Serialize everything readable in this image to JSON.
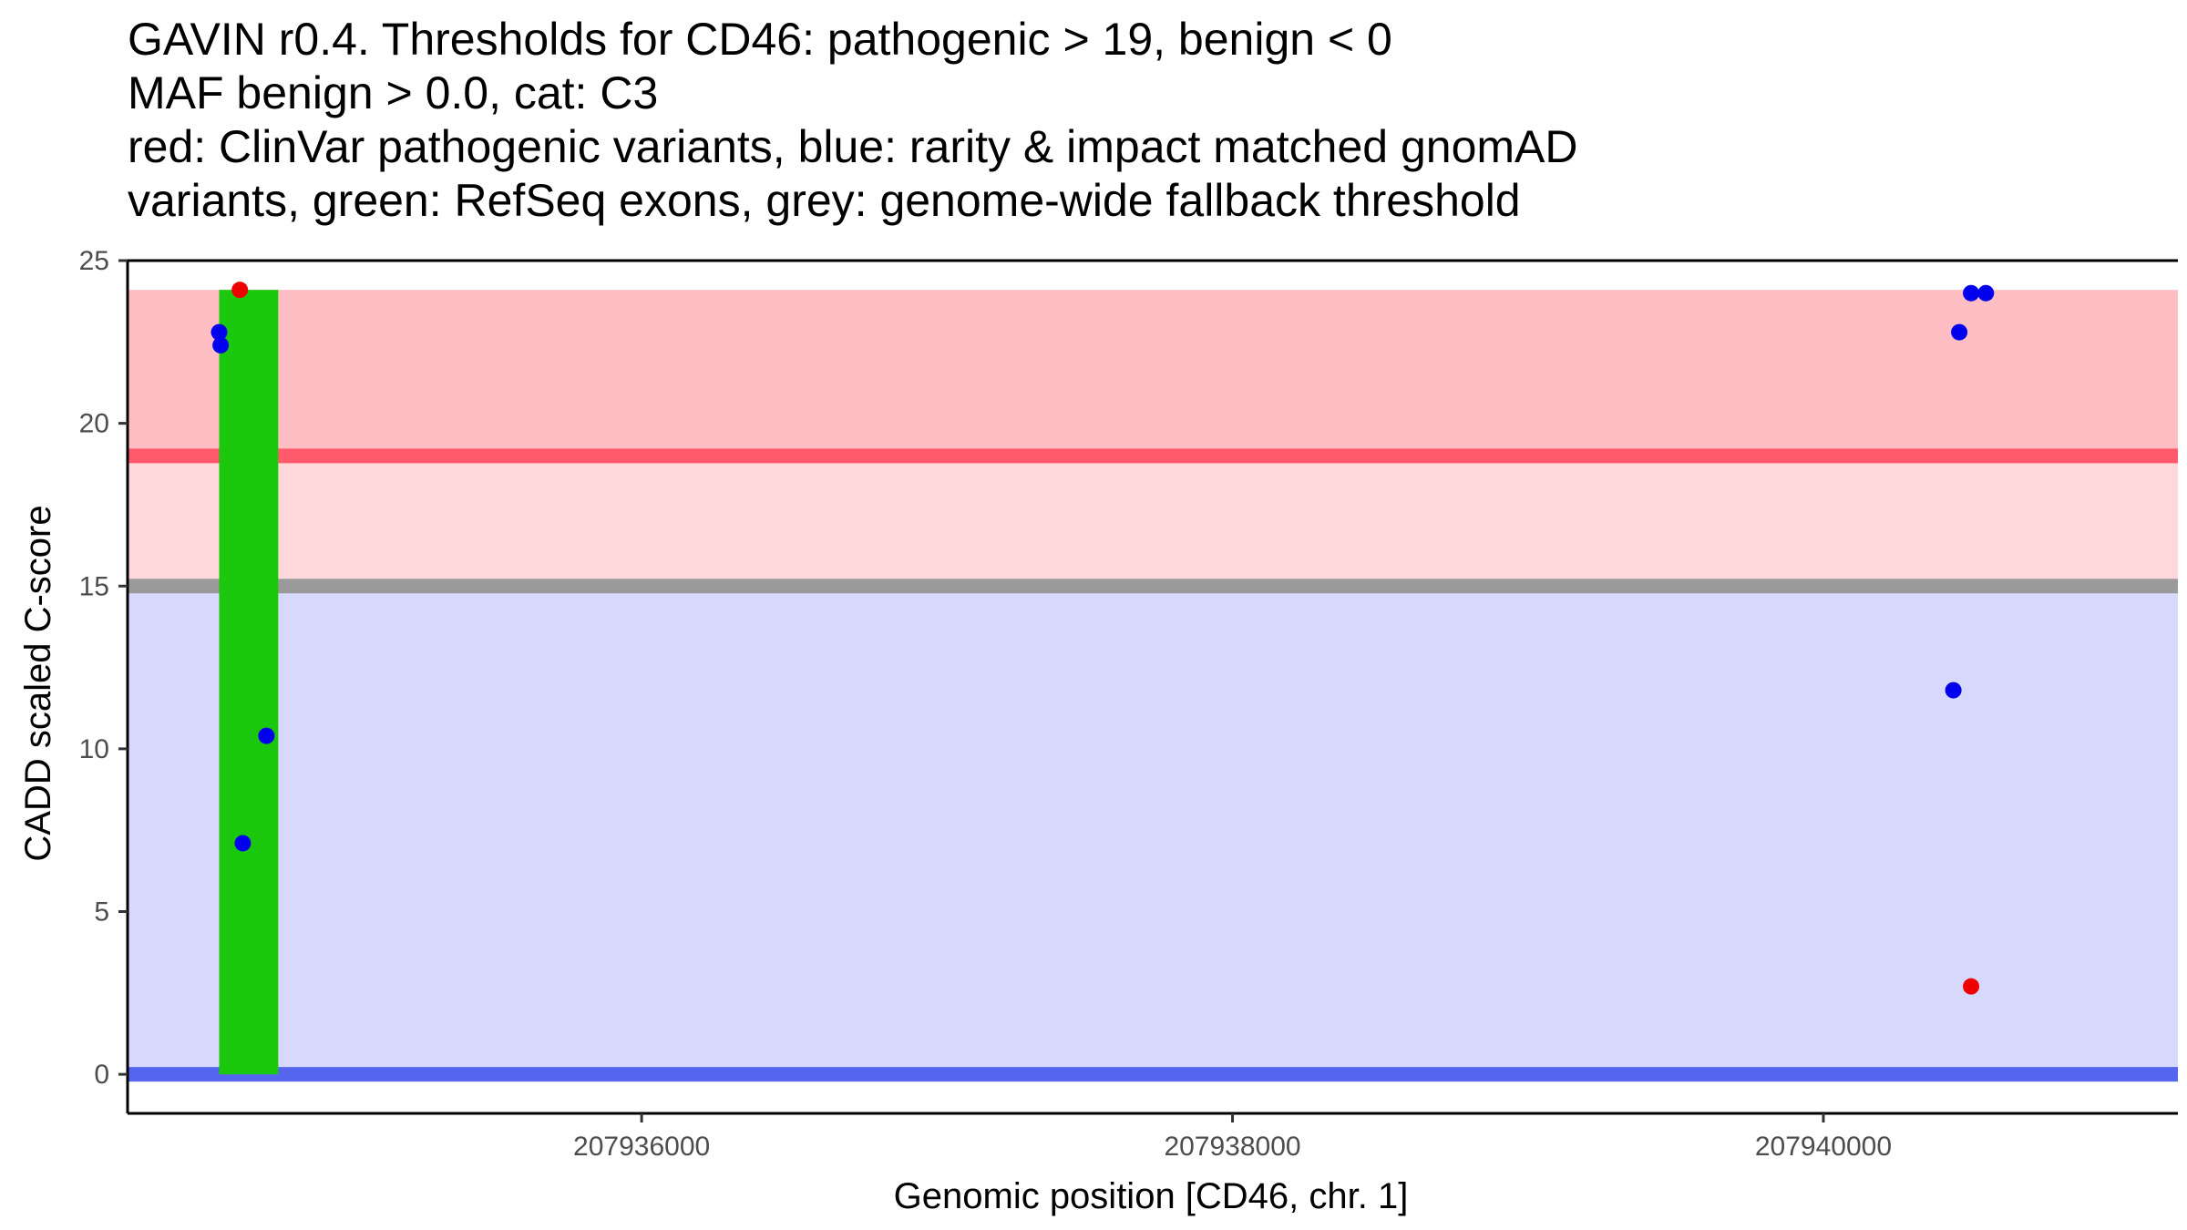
{
  "chart_data": {
    "type": "scatter",
    "title_lines": [
      "GAVIN r0.4. Thresholds for CD46: pathogenic > 19, benign < 0",
      "MAF benign > 0.0, cat: C3",
      "red: ClinVar pathogenic variants, blue: rarity & impact matched gnomAD",
      "variants, green: RefSeq exons, grey: genome-wide fallback threshold"
    ],
    "xlabel": "Genomic position [CD46, chr. 1]",
    "ylabel": "CADD scaled C-score",
    "xlim": [
      207934260,
      207941200
    ],
    "ylim": [
      -1.2,
      25.0
    ],
    "x_ticks": [
      207936000,
      207938000,
      207940000
    ],
    "x_tick_labels": [
      "207936000",
      "207938000",
      "207940000"
    ],
    "y_ticks": [
      0,
      5,
      10,
      15,
      20,
      25
    ],
    "y_tick_labels": [
      "0",
      "5",
      "10",
      "15",
      "20",
      "25"
    ],
    "bands": [
      {
        "name": "pathogenic-zone",
        "y0": 19,
        "y1": 24.1,
        "color": "#ffbec4"
      },
      {
        "name": "intermediate-zone",
        "y0": 15,
        "y1": 19,
        "color": "#ffd8dc"
      },
      {
        "name": "benign-zone",
        "y0": 0,
        "y1": 15,
        "color": "#d7d9fc"
      }
    ],
    "threshold_lines": [
      {
        "name": "pathogenic-threshold",
        "y": 19,
        "color": "#ff5a6c"
      },
      {
        "name": "fallback-threshold",
        "y": 15,
        "color": "#9a9a9a"
      },
      {
        "name": "benign-threshold",
        "y": 0,
        "color": "#5566ee"
      }
    ],
    "exons": [
      {
        "name": "refseq-exon",
        "x0": 207934570,
        "x1": 207934770,
        "y0": 0,
        "y1": 24.1,
        "color": "#1cc80e"
      }
    ],
    "series": [
      {
        "name": "ClinVar pathogenic variants",
        "color": "#ee0000",
        "points": [
          {
            "x": 207934640,
            "y": 24.1
          },
          {
            "x": 207940500,
            "y": 2.7
          }
        ]
      },
      {
        "name": "rarity & impact matched gnomAD variants",
        "color": "#0000ee",
        "points": [
          {
            "x": 207934570,
            "y": 22.8
          },
          {
            "x": 207934575,
            "y": 22.4
          },
          {
            "x": 207934650,
            "y": 7.1
          },
          {
            "x": 207934730,
            "y": 10.4
          },
          {
            "x": 207940440,
            "y": 11.8
          },
          {
            "x": 207940460,
            "y": 22.8
          },
          {
            "x": 207940500,
            "y": 24.0
          },
          {
            "x": 207940550,
            "y": 24.0
          }
        ]
      }
    ]
  }
}
